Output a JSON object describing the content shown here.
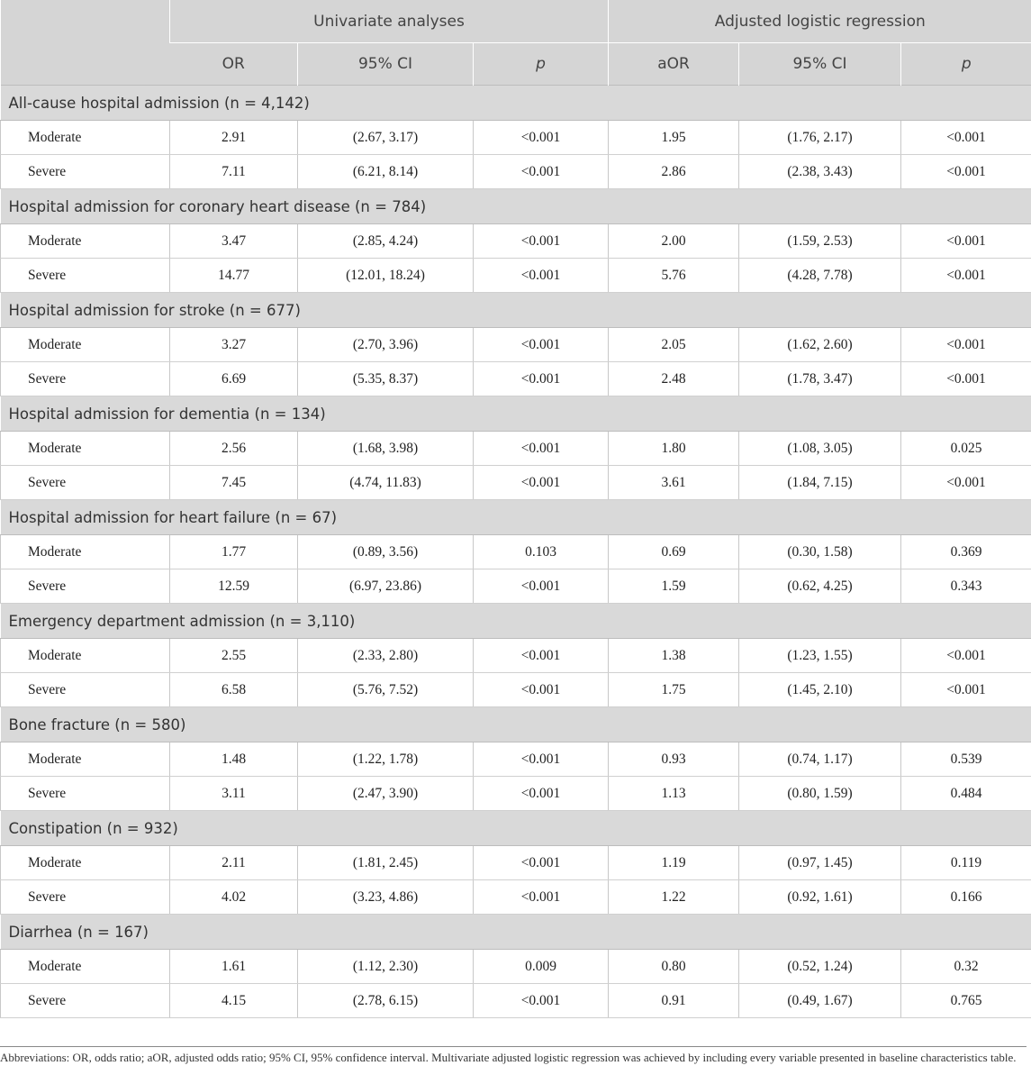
{
  "header": {
    "group1": "Univariate analyses",
    "group2": "Adjusted logistic regression",
    "cols": [
      "OR",
      "95% CI",
      "p",
      "aOR",
      "95% CI",
      "p"
    ]
  },
  "sections": [
    {
      "title": "All-cause hospital admission (n = 4,142)",
      "rows": [
        [
          "Moderate",
          "2.91",
          "(2.67, 3.17)",
          "<0.001",
          "1.95",
          "(1.76, 2.17)",
          "<0.001"
        ],
        [
          "Severe",
          "7.11",
          "(6.21, 8.14)",
          "<0.001",
          "2.86",
          "(2.38, 3.43)",
          "<0.001"
        ]
      ]
    },
    {
      "title": "Hospital admission for coronary heart disease (n = 784)",
      "rows": [
        [
          "Moderate",
          "3.47",
          "(2.85, 4.24)",
          "<0.001",
          "2.00",
          "(1.59, 2.53)",
          "<0.001"
        ],
        [
          "Severe",
          "14.77",
          "(12.01, 18.24)",
          "<0.001",
          "5.76",
          "(4.28, 7.78)",
          "<0.001"
        ]
      ]
    },
    {
      "title": "Hospital admission for stroke (n = 677)",
      "rows": [
        [
          "Moderate",
          "3.27",
          "(2.70, 3.96)",
          "<0.001",
          "2.05",
          "(1.62, 2.60)",
          "<0.001"
        ],
        [
          "Severe",
          "6.69",
          "(5.35, 8.37)",
          "<0.001",
          "2.48",
          "(1.78, 3.47)",
          "<0.001"
        ]
      ]
    },
    {
      "title": "Hospital admission for dementia (n = 134)",
      "rows": [
        [
          "Moderate",
          "2.56",
          "(1.68, 3.98)",
          "<0.001",
          "1.80",
          "(1.08, 3.05)",
          "0.025"
        ],
        [
          "Severe",
          "7.45",
          "(4.74, 11.83)",
          "<0.001",
          "3.61",
          "(1.84, 7.15)",
          "<0.001"
        ]
      ]
    },
    {
      "title": "Hospital admission for heart failure (n = 67)",
      "rows": [
        [
          "Moderate",
          "1.77",
          "(0.89, 3.56)",
          "0.103",
          "0.69",
          "(0.30, 1.58)",
          "0.369"
        ],
        [
          "Severe",
          "12.59",
          "(6.97, 23.86)",
          "<0.001",
          "1.59",
          "(0.62, 4.25)",
          "0.343"
        ]
      ]
    },
    {
      "title": "Emergency department admission (n = 3,110)",
      "rows": [
        [
          "Moderate",
          "2.55",
          "(2.33, 2.80)",
          "<0.001",
          "1.38",
          "(1.23, 1.55)",
          "<0.001"
        ],
        [
          "Severe",
          "6.58",
          "(5.76, 7.52)",
          "<0.001",
          "1.75",
          "(1.45, 2.10)",
          "<0.001"
        ]
      ]
    },
    {
      "title": "Bone fracture (n = 580)",
      "rows": [
        [
          "Moderate",
          "1.48",
          "(1.22, 1.78)",
          "<0.001",
          "0.93",
          "(0.74, 1.17)",
          "0.539"
        ],
        [
          "Severe",
          "3.11",
          "(2.47, 3.90)",
          "<0.001",
          "1.13",
          "(0.80, 1.59)",
          "0.484"
        ]
      ]
    },
    {
      "title": "Constipation (n = 932)",
      "rows": [
        [
          "Moderate",
          "2.11",
          "(1.81, 2.45)",
          "<0.001",
          "1.19",
          "(0.97, 1.45)",
          "0.119"
        ],
        [
          "Severe",
          "4.02",
          "(3.23, 4.86)",
          "<0.001",
          "1.22",
          "(0.92, 1.61)",
          "0.166"
        ]
      ]
    },
    {
      "title": "Diarrhea (n = 167)",
      "rows": [
        [
          "Moderate",
          "1.61",
          "(1.12, 2.30)",
          "0.009",
          "0.80",
          "(0.52, 1.24)",
          "0.32"
        ],
        [
          "Severe",
          "4.15",
          "(2.78, 6.15)",
          "<0.001",
          "0.91",
          "(0.49, 1.67)",
          "0.765"
        ]
      ]
    }
  ],
  "footnote": "Abbreviations: OR, odds ratio; aOR, adjusted odds ratio; 95% CI, 95% confidence interval. Multivariate adjusted logistic regression was achieved by including every variable presented in baseline characteristics table."
}
